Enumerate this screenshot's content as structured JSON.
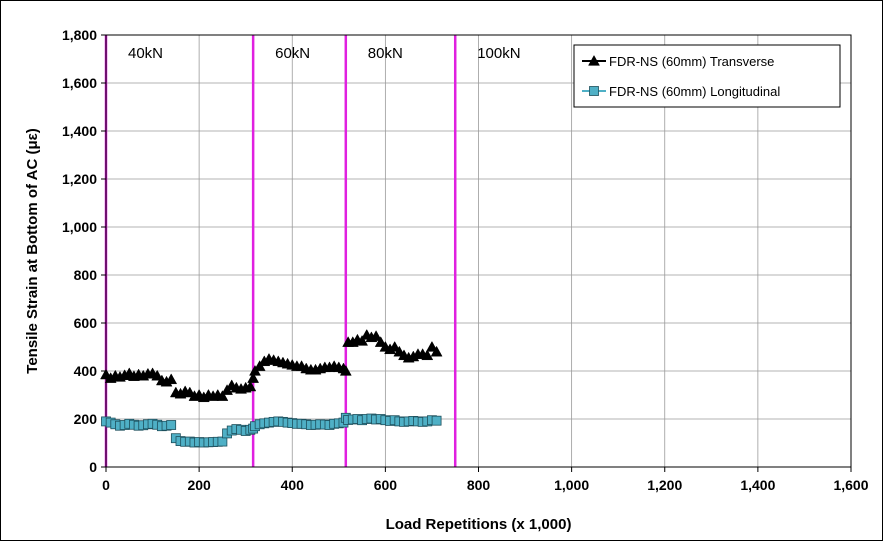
{
  "chart_data": {
    "type": "scatter",
    "xlabel": "Load Repetitions (x 1,000)",
    "ylabel": "Tensile Strain at Bottom of AC (με)",
    "xlim": [
      0,
      1600
    ],
    "ylim": [
      0,
      1800
    ],
    "x_ticks": [
      "0",
      "200",
      "400",
      "600",
      "800",
      "1,000",
      "1,200",
      "1,400",
      "1,600"
    ],
    "y_ticks": [
      "0",
      "200",
      "400",
      "600",
      "800",
      "1,000",
      "1,200",
      "1,400",
      "1,600",
      "1,800"
    ],
    "grid": true,
    "legend_position": "top-right",
    "load_stages": [
      {
        "x": 0,
        "label": "40kN"
      },
      {
        "x": 316,
        "label": "60kN"
      },
      {
        "x": 515,
        "label": "80kN"
      },
      {
        "x": 750,
        "label": "100kN"
      }
    ],
    "stage_line_color": "#e020e0",
    "series": [
      {
        "name": "FDR-NS (60mm) Transverse",
        "marker": "triangle",
        "color": "#000000",
        "x": [
          0,
          10,
          20,
          30,
          40,
          50,
          60,
          70,
          80,
          90,
          100,
          110,
          120,
          130,
          140,
          150,
          160,
          170,
          180,
          190,
          200,
          210,
          220,
          230,
          240,
          250,
          260,
          270,
          280,
          290,
          300,
          310,
          316,
          320,
          330,
          340,
          350,
          360,
          370,
          380,
          390,
          400,
          410,
          420,
          430,
          440,
          450,
          460,
          470,
          480,
          490,
          500,
          510,
          515,
          520,
          530,
          540,
          550,
          560,
          570,
          580,
          590,
          600,
          610,
          620,
          630,
          640,
          650,
          660,
          670,
          680,
          690,
          700,
          710
        ],
        "y": [
          385,
          370,
          380,
          375,
          382,
          390,
          378,
          385,
          380,
          388,
          390,
          380,
          360,
          355,
          365,
          310,
          305,
          315,
          310,
          295,
          300,
          290,
          300,
          295,
          300,
          295,
          320,
          340,
          330,
          325,
          330,
          335,
          370,
          400,
          420,
          440,
          450,
          445,
          440,
          435,
          430,
          425,
          420,
          420,
          410,
          405,
          405,
          410,
          415,
          415,
          420,
          415,
          410,
          400,
          520,
          520,
          530,
          525,
          550,
          540,
          545,
          520,
          500,
          490,
          500,
          480,
          465,
          455,
          460,
          470,
          470,
          465,
          500,
          480
        ]
      },
      {
        "name": "FDR-NS (60mm) Longitudinal",
        "marker": "square",
        "color": "#4fb0c6",
        "x": [
          0,
          10,
          20,
          30,
          40,
          50,
          60,
          70,
          80,
          90,
          100,
          110,
          120,
          130,
          140,
          150,
          160,
          170,
          180,
          190,
          200,
          210,
          220,
          230,
          240,
          250,
          260,
          270,
          280,
          290,
          300,
          310,
          316,
          320,
          330,
          340,
          350,
          360,
          370,
          380,
          390,
          400,
          410,
          420,
          430,
          440,
          450,
          460,
          470,
          480,
          490,
          500,
          510,
          515,
          520,
          530,
          540,
          550,
          560,
          570,
          580,
          590,
          600,
          610,
          620,
          630,
          640,
          650,
          660,
          670,
          680,
          690,
          700,
          710
        ],
        "y": [
          190,
          185,
          178,
          172,
          175,
          180,
          176,
          172,
          174,
          178,
          180,
          176,
          170,
          172,
          175,
          120,
          108,
          105,
          106,
          102,
          104,
          102,
          103,
          104,
          105,
          106,
          140,
          152,
          158,
          155,
          150,
          155,
          160,
          170,
          178,
          182,
          185,
          188,
          190,
          188,
          185,
          183,
          180,
          180,
          178,
          175,
          176,
          178,
          177,
          175,
          180,
          182,
          185,
          205,
          196,
          198,
          200,
          195,
          200,
          202,
          198,
          200,
          195,
          192,
          195,
          190,
          188,
          190,
          192,
          190,
          188,
          190,
          195,
          193
        ]
      }
    ]
  }
}
